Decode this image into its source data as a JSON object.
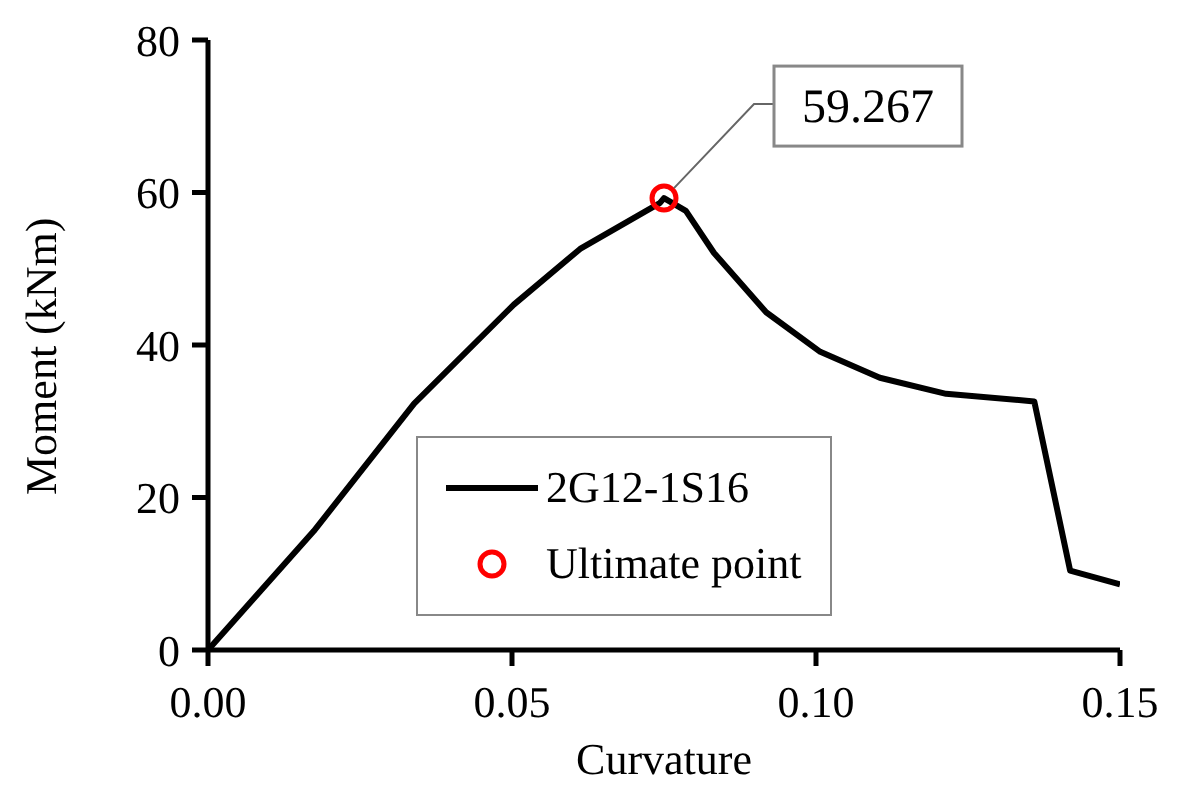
{
  "chart_data": {
    "type": "line",
    "xlabel": "Curvature",
    "ylabel": "Moment (kNm)",
    "xlim": [
      0,
      0.15
    ],
    "xticks": [
      {
        "value": 0,
        "label": "0.00"
      },
      {
        "value": 0.05,
        "label": "0.05"
      },
      {
        "value": 0.1,
        "label": "0.10"
      },
      {
        "value": 0.15,
        "label": "0.15"
      }
    ],
    "ylim": [
      0,
      80
    ],
    "yticks": [
      0,
      20,
      40,
      60,
      80
    ],
    "grid": false,
    "legend": "bottom",
    "series": [
      {
        "name": "2G12-1S16",
        "type": "line",
        "color": "#000000",
        "marker": "none",
        "line_style": "solid",
        "x": [
          0,
          0.0174,
          0.0339,
          0.0503,
          0.0612,
          0.0743,
          0.075,
          0.0786,
          0.0832,
          0.0918,
          0.1007,
          0.1105,
          0.1214,
          0.1359,
          0.1418,
          0.15
        ],
        "values": [
          0,
          15.6,
          32.3,
          45.3,
          52.6,
          58.6,
          59.267,
          57.6,
          52.1,
          44.3,
          39.1,
          35.7,
          33.6,
          32.6,
          10.4,
          8.6
        ]
      },
      {
        "name": "Ultimate point",
        "type": "scatter",
        "color": "#ff0000",
        "marker": "circle",
        "x": [
          0.075
        ],
        "values": [
          59.267
        ]
      }
    ],
    "annotations": [
      {
        "text": "59.267",
        "x": 0.075,
        "y": 59.267
      }
    ]
  }
}
